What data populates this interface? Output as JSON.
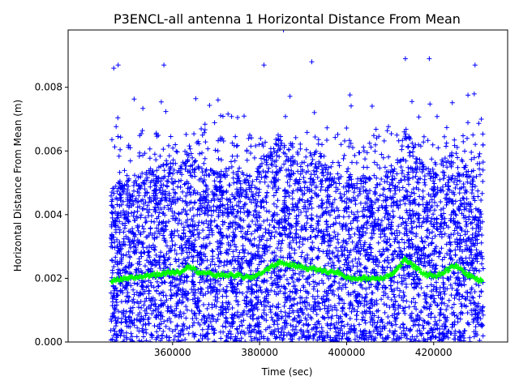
{
  "chart_data": {
    "type": "scatter",
    "title": "P3ENCL-all antenna 1 Horizontal Distance From Mean",
    "xlabel": "Time (sec)",
    "ylabel": "Horizontal Distance From Mean (m)",
    "xlim": [
      336000,
      437000
    ],
    "ylim": [
      0,
      0.0098
    ],
    "xticks": [
      360000,
      380000,
      400000,
      420000
    ],
    "xtick_labels": [
      "360000",
      "380000",
      "400000",
      "420000"
    ],
    "yticks": [
      0.0,
      0.002,
      0.004,
      0.006,
      0.008
    ],
    "ytick_labels": [
      "0.000",
      "0.002",
      "0.004",
      "0.006",
      "0.008"
    ],
    "grid": false,
    "series": [
      {
        "kind": "scatter",
        "marker": "plus",
        "color": "#0000ff",
        "x_range": [
          345800,
          431400
        ],
        "y_range": [
          0.0,
          0.0098
        ],
        "notable_points": [
          {
            "x": 346500,
            "y": 0.0086
          },
          {
            "x": 347500,
            "y": 0.0087
          },
          {
            "x": 358000,
            "y": 0.0087
          },
          {
            "x": 381000,
            "y": 0.0087
          },
          {
            "x": 385500,
            "y": 0.0098
          },
          {
            "x": 392000,
            "y": 0.0088
          },
          {
            "x": 413500,
            "y": 0.0089
          },
          {
            "x": 419000,
            "y": 0.0089
          },
          {
            "x": 429500,
            "y": 0.0087
          }
        ]
      },
      {
        "kind": "line",
        "marker": "plus",
        "color": "#00ff00",
        "x": [
          346000,
          350000,
          355000,
          360000,
          362000,
          363500,
          366000,
          370000,
          375000,
          378000,
          382000,
          384500,
          388000,
          392000,
          396000,
          398000,
          400000,
          404000,
          408000,
          411000,
          413500,
          416000,
          418500,
          421000,
          425000,
          428000,
          431000
        ],
        "y": [
          0.0019,
          0.002,
          0.0021,
          0.0022,
          0.0022,
          0.0024,
          0.0022,
          0.0021,
          0.0021,
          0.002,
          0.0023,
          0.0025,
          0.0024,
          0.0023,
          0.0022,
          0.0022,
          0.002,
          0.002,
          0.002,
          0.0022,
          0.0026,
          0.0023,
          0.0021,
          0.0021,
          0.0024,
          0.0021,
          0.0019
        ]
      }
    ]
  }
}
